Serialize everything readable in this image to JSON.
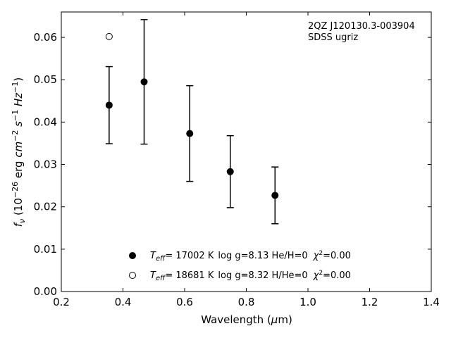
{
  "chart_data": {
    "type": "scatter",
    "xlabel": "Wavelength (μm)",
    "ylabel": "f_ν (10^-26 erg cm^-2 s^-1 Hz^-1)",
    "xlim": [
      0.2,
      1.4
    ],
    "ylim": [
      0.0,
      0.066
    ],
    "x_ticks": [
      "0.2",
      "0.4",
      "0.6",
      "0.8",
      "1.0",
      "1.2",
      "1.4"
    ],
    "y_ticks": [
      "0.00",
      "0.01",
      "0.02",
      "0.03",
      "0.04",
      "0.05",
      "0.06"
    ],
    "grid": false,
    "annotation": {
      "line1": "2QZ J120130.3-003904",
      "line2": "SDSS ugriz"
    },
    "legend": {
      "placement": "bottom-center",
      "entries": [
        {
          "marker": "filled-circle",
          "teff": "= 17002 K",
          "rest": "log g=8.13  He/H=0",
          "chi": "=0.00"
        },
        {
          "marker": "open-circle",
          "teff": "= 18681 K",
          "rest": "log g=8.32  H/He=0",
          "chi": "=0.00"
        }
      ]
    },
    "series": [
      {
        "marker": "filled-circle",
        "points": [
          {
            "x": 0.3551,
            "y": 0.044,
            "err": 0.0091
          },
          {
            "x": 0.4686,
            "y": 0.0495,
            "err": 0.0147
          },
          {
            "x": 0.6166,
            "y": 0.0373,
            "err": 0.0113
          },
          {
            "x": 0.748,
            "y": 0.0283,
            "err": 0.0085
          },
          {
            "x": 0.8932,
            "y": 0.0227,
            "err": 0.0067
          }
        ]
      },
      {
        "marker": "open-circle",
        "points": [
          {
            "x": 0.3551,
            "y": 0.0602
          }
        ]
      }
    ]
  }
}
